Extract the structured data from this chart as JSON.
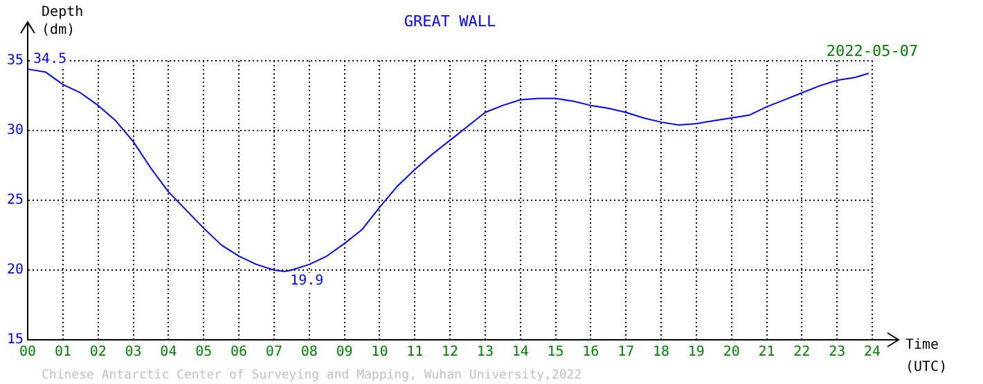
{
  "chart_data": {
    "type": "line",
    "title": "GREAT WALL",
    "xlabel": "Time (UTC)",
    "ylabel": "Depth (dm)",
    "x": [
      0,
      0.5,
      1,
      1.5,
      2,
      2.5,
      3,
      3.5,
      4,
      4.5,
      5,
      5.5,
      6,
      6.5,
      7,
      7.3,
      7.5,
      8,
      8.5,
      9,
      9.5,
      10,
      10.5,
      11,
      11.5,
      12,
      12.5,
      13,
      13.5,
      14,
      14.5,
      15,
      15.5,
      16,
      16.5,
      17,
      17.5,
      18,
      18.5,
      19,
      19.5,
      20,
      20.5,
      21,
      21.5,
      22,
      22.5,
      23,
      23.5,
      23.9
    ],
    "series": [
      {
        "color": "#0000ff",
        "values": [
          34.4,
          34.2,
          33.3,
          32.7,
          31.8,
          30.7,
          29.2,
          27.3,
          25.6,
          24.3,
          23.0,
          21.8,
          21.0,
          20.4,
          20.0,
          19.9,
          20.0,
          20.4,
          21.0,
          21.9,
          22.9,
          24.5,
          26.0,
          27.2,
          28.3,
          29.3,
          30.3,
          31.3,
          31.8,
          32.2,
          32.3,
          32.3,
          32.1,
          31.8,
          31.6,
          31.3,
          30.9,
          30.6,
          30.4,
          30.5,
          30.7,
          30.9,
          31.1,
          31.7,
          32.2,
          32.7,
          33.2,
          33.6,
          33.8,
          34.1
        ]
      }
    ],
    "xlim": [
      0,
      24
    ],
    "ylim": [
      15,
      35
    ],
    "xticks": [
      {
        "value": 0,
        "label": "00"
      },
      {
        "value": 1,
        "label": "01"
      },
      {
        "value": 2,
        "label": "02"
      },
      {
        "value": 3,
        "label": "03"
      },
      {
        "value": 4,
        "label": "04"
      },
      {
        "value": 5,
        "label": "05"
      },
      {
        "value": 6,
        "label": "06"
      },
      {
        "value": 7,
        "label": "07"
      },
      {
        "value": 8,
        "label": "08"
      },
      {
        "value": 9,
        "label": "09"
      },
      10,
      11,
      12,
      13,
      14,
      15,
      16,
      17,
      18,
      19,
      20,
      21,
      22,
      23,
      24
    ],
    "yticks": [
      15,
      20,
      25,
      30,
      35
    ],
    "grid": true,
    "legend": false,
    "marker": "none",
    "line_style": "solid",
    "annotations": [
      {
        "text": "34.5",
        "x": 0,
        "y": 34.5
      },
      {
        "text": "19.9",
        "x": 7.3,
        "y": 19.9
      },
      "2022-05-07",
      "Chinese Antarctic Center of Surveying and Mapping, Wuhan University,2022"
    ]
  }
}
